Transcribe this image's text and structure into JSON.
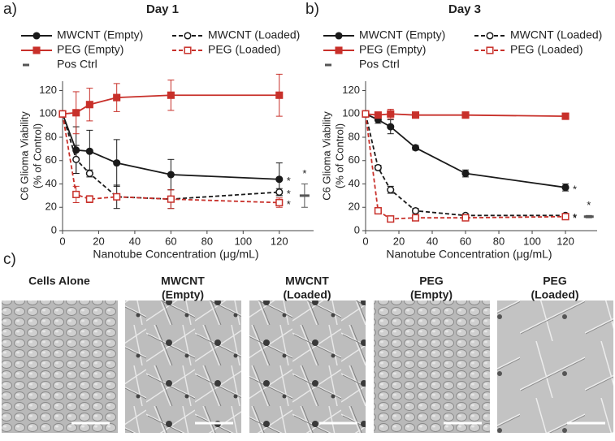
{
  "chart_data": [
    {
      "type": "line",
      "panel_label": "a)",
      "title": "Day 1",
      "x_label": "Nanotube Concentration (μg/mL)",
      "y_label": [
        "C6 Glioma Viability",
        "(% of Control)"
      ],
      "x": [
        0,
        7.5,
        15,
        30,
        60,
        120
      ],
      "xlim": [
        0,
        139
      ],
      "xticks": [
        0,
        20,
        40,
        60,
        80,
        100,
        120
      ],
      "ylim": [
        0,
        128
      ],
      "yticks": [
        0,
        20,
        40,
        60,
        80,
        100,
        120
      ],
      "series": [
        {
          "name": "MWCNT (Empty)",
          "color": "#1a1a1a",
          "dashed": false,
          "marker": "circle",
          "filled": true,
          "values": [
            100,
            69,
            68,
            58,
            48,
            44
          ],
          "error": [
            0,
            20,
            18,
            20,
            13,
            14
          ],
          "significance": "*"
        },
        {
          "name": "MWCNT (Loaded)",
          "color": "#1a1a1a",
          "dashed": true,
          "marker": "circle",
          "filled": false,
          "values": [
            100,
            61,
            49,
            29,
            27,
            33
          ],
          "error": [
            0,
            12,
            3,
            10,
            8,
            3
          ],
          "significance": "*"
        },
        {
          "name": "PEG (Empty)",
          "color": "#c8302a",
          "dashed": false,
          "marker": "square",
          "filled": true,
          "values": [
            100,
            101,
            108,
            114,
            116,
            116
          ],
          "error": [
            0,
            18,
            14,
            12,
            13,
            18
          ]
        },
        {
          "name": "PEG (Loaded)",
          "color": "#c8302a",
          "dashed": true,
          "marker": "square",
          "filled": false,
          "values": [
            100,
            31,
            27,
            29,
            27,
            24
          ],
          "error": [
            0,
            7,
            3,
            2,
            8,
            4
          ],
          "significance": "*"
        },
        {
          "name": "Pos Ctrl",
          "color": "#555555",
          "marker": "dash",
          "x": [
            134
          ],
          "values": [
            30
          ],
          "error": [
            10
          ],
          "significance": "*"
        }
      ]
    },
    {
      "type": "line",
      "panel_label": "b)",
      "title": "Day 3",
      "x_label": "Nanotube Concentration (μg/mL)",
      "y_label": [
        "C6 Glioma Viability",
        "(% of Control)"
      ],
      "x": [
        0,
        7.5,
        15,
        30,
        60,
        120
      ],
      "xlim": [
        0,
        139
      ],
      "xticks": [
        0,
        20,
        40,
        60,
        80,
        100,
        120
      ],
      "ylim": [
        0,
        128
      ],
      "yticks": [
        0,
        20,
        40,
        60,
        80,
        100,
        120
      ],
      "series": [
        {
          "name": "MWCNT (Empty)",
          "color": "#1a1a1a",
          "dashed": false,
          "marker": "circle",
          "filled": true,
          "values": [
            100,
            95,
            89,
            71,
            49,
            37
          ],
          "error": [
            0,
            3,
            6,
            2,
            3,
            3
          ],
          "significance": "*"
        },
        {
          "name": "MWCNT (Loaded)",
          "color": "#1a1a1a",
          "dashed": true,
          "marker": "circle",
          "filled": false,
          "values": [
            100,
            54,
            35,
            17,
            13,
            13
          ],
          "error": [
            0,
            2,
            3,
            2,
            1,
            1
          ],
          "significance": "*"
        },
        {
          "name": "PEG (Empty)",
          "color": "#c8302a",
          "dashed": false,
          "marker": "square",
          "filled": true,
          "values": [
            100,
            99,
            100,
            99,
            99,
            98
          ],
          "error": [
            0,
            2,
            4,
            1,
            1,
            1
          ]
        },
        {
          "name": "PEG (Loaded)",
          "color": "#c8302a",
          "dashed": true,
          "marker": "square",
          "filled": false,
          "values": [
            100,
            17,
            10,
            11,
            11,
            12
          ],
          "error": [
            0,
            1,
            1,
            1,
            1,
            1
          ],
          "significance": "*"
        },
        {
          "name": "Pos Ctrl",
          "color": "#555555",
          "marker": "dash",
          "x": [
            134
          ],
          "values": [
            12
          ],
          "error": [
            1
          ],
          "significance": "*"
        }
      ]
    }
  ],
  "images": {
    "panel_label": "c)",
    "captions": [
      [
        "Cells Alone"
      ],
      [
        "MWCNT",
        "(Empty)"
      ],
      [
        "MWCNT",
        "(Loaded)"
      ],
      [
        "PEG",
        "(Empty)"
      ],
      [
        "PEG",
        "(Loaded)"
      ]
    ]
  }
}
